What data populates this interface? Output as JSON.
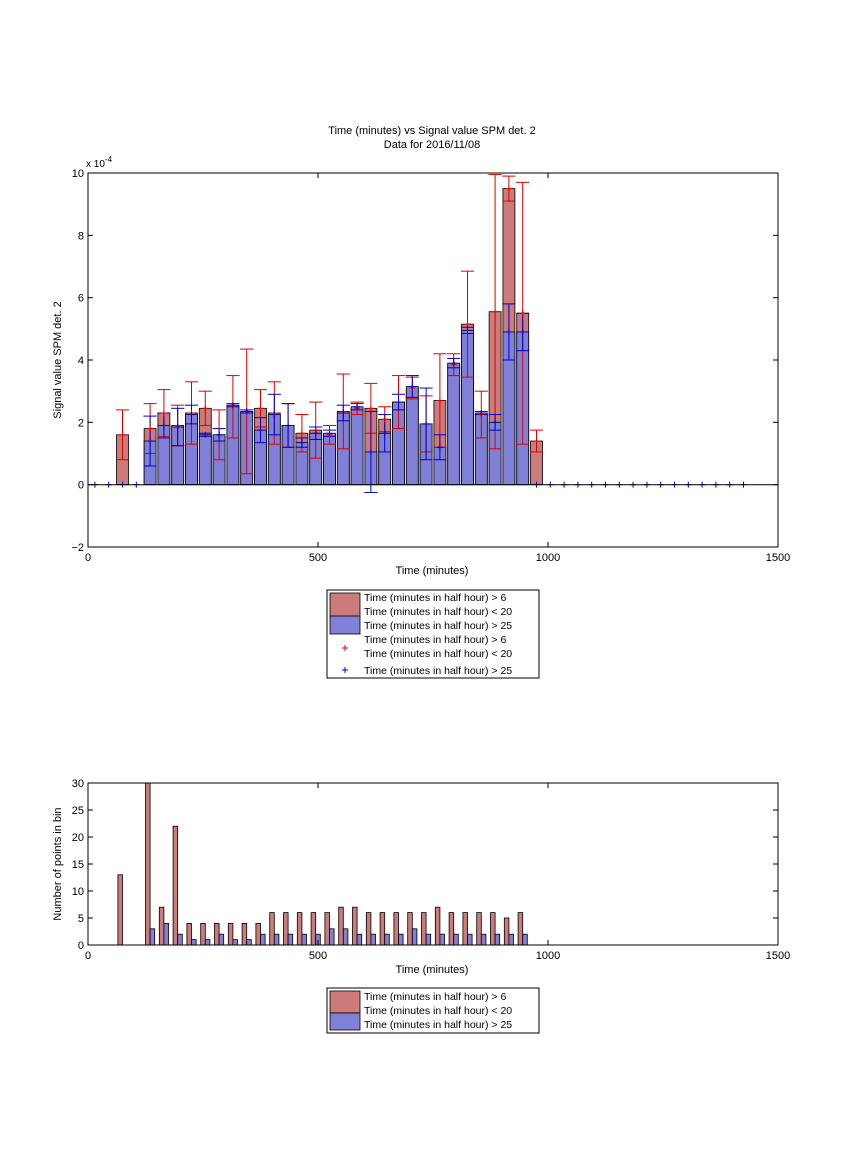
{
  "chart_data": [
    {
      "type": "bar",
      "title": "Time (minutes) vs Signal value SPM det. 2",
      "subtitle": "Data for 2016/11/08",
      "xlabel": "Time (minutes)",
      "ylabel": "Signal value SPM det. 2",
      "y_exponent_label": "x 10",
      "y_exponent_power": "-4",
      "xlim": [
        0,
        1500
      ],
      "ylim": [
        -2,
        10
      ],
      "x_ticks": [
        0,
        500,
        1000,
        1500
      ],
      "y_ticks": [
        -2,
        0,
        2,
        4,
        6,
        8,
        10
      ],
      "grid": false,
      "legend_position": "below",
      "legend": [
        {
          "kind": "patch",
          "color": "#cc7a7a",
          "lines": [
            "Time (minutes in half hour) > 6",
            "Time (minutes in half hour) < 20"
          ]
        },
        {
          "kind": "patch",
          "color": "#8080d8",
          "lines": [
            "Time (minutes in half hour) > 25"
          ]
        },
        {
          "kind": "marker",
          "color": "#dd0000",
          "lines": [
            "Time (minutes in half hour) > 6",
            "Time (minutes in half hour) < 20"
          ]
        },
        {
          "kind": "marker",
          "color": "#0000cc",
          "lines": [
            "Time (minutes in half hour) > 25"
          ]
        }
      ],
      "series": [
        {
          "name": "Time (minutes in half hour) > 6 Time (minutes in half hour) < 20",
          "color": "#cc7a7a",
          "errorbar_color": "#dd0000",
          "x": [
            75,
            135,
            165,
            195,
            225,
            255,
            285,
            315,
            345,
            375,
            405,
            435,
            465,
            495,
            525,
            555,
            585,
            615,
            645,
            675,
            705,
            735,
            765,
            795,
            825,
            855,
            885,
            915,
            945,
            975
          ],
          "values": [
            1.6,
            1.8,
            2.3,
            1.9,
            2.3,
            2.45,
            1.6,
            2.5,
            2.35,
            2.45,
            2.3,
            1.9,
            1.65,
            1.75,
            1.6,
            2.35,
            2.45,
            2.45,
            2.1,
            2.65,
            3.1,
            1.95,
            2.7,
            3.85,
            5.15,
            2.25,
            5.55,
            9.5,
            5.5,
            1.4
          ],
          "err": [
            0.8,
            0.8,
            0.75,
            0.65,
            1.0,
            0.55,
            0.8,
            1.0,
            2.0,
            0.6,
            1.0,
            0.7,
            0.6,
            0.9,
            0.3,
            1.2,
            0.2,
            0.8,
            0.4,
            0.85,
            0.35,
            0.9,
            1.5,
            0.35,
            1.7,
            0.75,
            4.4,
            0.4,
            4.2,
            0.35
          ]
        },
        {
          "name": "Time (minutes in half hour) > 25",
          "color": "#8080d8",
          "errorbar_color": "#0000cc",
          "x": [
            15,
            45,
            75,
            105,
            135,
            165,
            195,
            225,
            255,
            285,
            315,
            345,
            375,
            405,
            435,
            465,
            495,
            525,
            555,
            585,
            615,
            645,
            675,
            705,
            735,
            765,
            795,
            825,
            855,
            885,
            915,
            945,
            975,
            1005,
            1035,
            1065,
            1095,
            1125,
            1155,
            1185,
            1215,
            1245,
            1275,
            1305,
            1335,
            1365,
            1395,
            1425
          ],
          "values": [
            0,
            0,
            0,
            0,
            1.4,
            1.9,
            1.85,
            2.25,
            1.6,
            1.6,
            2.55,
            2.35,
            1.75,
            2.25,
            1.9,
            1.35,
            1.65,
            1.65,
            2.3,
            2.5,
            1.05,
            1.65,
            2.65,
            3.15,
            1.95,
            1.2,
            3.9,
            4.95,
            2.3,
            2.0,
            4.9,
            4.9,
            0,
            0,
            0,
            0,
            0,
            0,
            0,
            0,
            0,
            0,
            0,
            0,
            0,
            0,
            0,
            0
          ],
          "err": [
            0,
            0,
            0,
            0,
            0.8,
            0.4,
            0.6,
            0.3,
            0.05,
            0.2,
            0.05,
            0.05,
            0.4,
            0.65,
            0.7,
            0.15,
            0.2,
            0.1,
            0.25,
            0.1,
            1.3,
            0.6,
            0.25,
            0.35,
            1.15,
            0.4,
            0.15,
            0.1,
            0.05,
            0.25,
            0.9,
            0.6,
            0,
            0,
            0,
            0,
            0,
            0,
            0,
            0,
            0,
            0,
            0,
            0,
            0,
            0,
            0,
            0
          ]
        }
      ]
    },
    {
      "type": "bar",
      "xlabel": "Time (minutes)",
      "ylabel": "Number of points in bin",
      "xlim": [
        0,
        1500
      ],
      "ylim": [
        0,
        30
      ],
      "x_ticks": [
        0,
        500,
        1000,
        1500
      ],
      "y_ticks": [
        0,
        5,
        10,
        15,
        20,
        25,
        30
      ],
      "grid": false,
      "legend_position": "below",
      "legend": [
        {
          "kind": "patch",
          "color": "#cc7a7a",
          "lines": [
            "Time (minutes in half hour) > 6",
            "Time (minutes in half hour) < 20"
          ]
        },
        {
          "kind": "patch",
          "color": "#8080d8",
          "lines": [
            "Time (minutes in half hour) > 25"
          ]
        }
      ],
      "series": [
        {
          "name": "Time (minutes in half hour) > 6 Time (minutes in half hour) < 20",
          "color": "#cc7a7a",
          "x": [
            70,
            130,
            160,
            190,
            220,
            250,
            280,
            310,
            340,
            370,
            400,
            430,
            460,
            490,
            520,
            550,
            580,
            610,
            640,
            670,
            700,
            730,
            760,
            790,
            820,
            850,
            880,
            910,
            940
          ],
          "values": [
            13,
            30,
            7,
            22,
            4,
            4,
            4,
            4,
            4,
            4,
            6,
            6,
            6,
            6,
            6,
            7,
            7,
            6,
            6,
            6,
            6,
            6,
            7,
            6,
            6,
            6,
            6,
            5,
            6
          ]
        },
        {
          "name": "Time (minutes in half hour) > 25",
          "color": "#8080d8",
          "x": [
            140,
            170,
            200,
            230,
            260,
            290,
            320,
            350,
            380,
            410,
            440,
            470,
            500,
            530,
            560,
            590,
            620,
            650,
            680,
            710,
            740,
            770,
            800,
            830,
            860,
            890,
            920,
            950
          ],
          "values": [
            3,
            4,
            2,
            1,
            1,
            2,
            1,
            1,
            2,
            2,
            2,
            2,
            2,
            3,
            3,
            2,
            2,
            2,
            2,
            3,
            2,
            2,
            2,
            2,
            2,
            2,
            2,
            2
          ]
        }
      ]
    }
  ]
}
